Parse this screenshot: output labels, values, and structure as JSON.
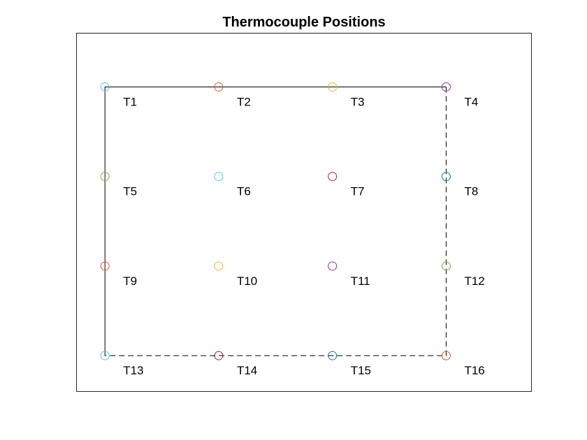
{
  "chart_data": {
    "type": "scatter",
    "title": "Thermocouple Positions",
    "xlabel": "",
    "ylabel": "",
    "xlim": [
      0.75,
      4.75
    ],
    "ylim": [
      0.6,
      4.6
    ],
    "grid": false,
    "axis_ticks": false,
    "points": [
      {
        "label": "T1",
        "x": 1,
        "y": 4,
        "color": "#4DBEEE"
      },
      {
        "label": "T2",
        "x": 2,
        "y": 4,
        "color": "#D95319"
      },
      {
        "label": "T3",
        "x": 3,
        "y": 4,
        "color": "#EDB120"
      },
      {
        "label": "T4",
        "x": 4,
        "y": 4,
        "color": "#7E2F8E"
      },
      {
        "label": "T5",
        "x": 1,
        "y": 3,
        "color": "#77AC30"
      },
      {
        "label": "T6",
        "x": 2,
        "y": 3,
        "color": "#4DBEEE"
      },
      {
        "label": "T7",
        "x": 3,
        "y": 3,
        "color": "#A2142F"
      },
      {
        "label": "T8",
        "x": 4,
        "y": 3,
        "color": "#0072BD"
      },
      {
        "label": "T9",
        "x": 1,
        "y": 2,
        "color": "#D95319"
      },
      {
        "label": "T10",
        "x": 2,
        "y": 2,
        "color": "#EDB120"
      },
      {
        "label": "T11",
        "x": 3,
        "y": 2,
        "color": "#7E2F8E"
      },
      {
        "label": "T12",
        "x": 4,
        "y": 2,
        "color": "#77AC30"
      },
      {
        "label": "T13",
        "x": 1,
        "y": 1,
        "color": "#4DBEEE"
      },
      {
        "label": "T14",
        "x": 2,
        "y": 1,
        "color": "#A2142F"
      },
      {
        "label": "T15",
        "x": 3,
        "y": 1,
        "color": "#0072BD"
      },
      {
        "label": "T16",
        "x": 4,
        "y": 1,
        "color": "#D95319"
      }
    ],
    "outline": {
      "solid": [
        [
          1,
          1
        ],
        [
          1,
          4
        ],
        [
          4,
          4
        ]
      ],
      "dashed": [
        [
          4,
          4
        ],
        [
          4,
          1
        ],
        [
          1,
          1
        ]
      ],
      "color": "#000000"
    }
  }
}
